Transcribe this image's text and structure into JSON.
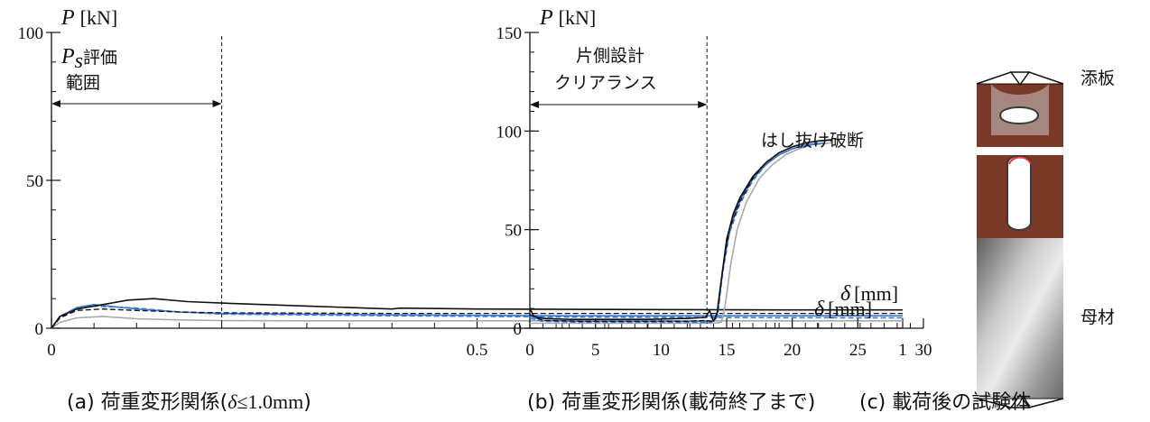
{
  "colors": {
    "black": "#111111",
    "blue_solid": "#3a78d6",
    "blue_dashed": "#3a78d6",
    "gray": "#a9a9a9",
    "black_dashed": "#111111"
  },
  "captions": {
    "a_prefix": "(a) 荷重変形関係(",
    "a_var": "δ",
    "a_cond": "≤1.0mm",
    "a_suffix": ")",
    "b": "(b) 荷重変形関係(載荷終了まで)",
    "c": "(c) 載荷後の試験体"
  },
  "photo": {
    "label_top": "添板",
    "label_bottom": "母材"
  },
  "chart_data": [
    {
      "type": "line",
      "y_var": "P",
      "y_unit": "[kN]",
      "x_var": "δ",
      "x_unit": "[mm]",
      "xlim": [
        0,
        1
      ],
      "ylim": [
        0,
        100
      ],
      "x_ticks": [
        0,
        0.5,
        1
      ],
      "x_tick_labels": [
        "0",
        "0.5",
        "1"
      ],
      "y_ticks": [
        0,
        50,
        100
      ],
      "y_tick_labels": [
        "0",
        "50",
        "100"
      ],
      "annotation": {
        "text_sym": "P",
        "text_sub": "s",
        "text_line1_rest": "評価",
        "text_line2": "範囲",
        "x_start": 0,
        "x_end": 0.2
      },
      "series": [
        {
          "style": "black_solid",
          "x": [
            0,
            0.01,
            0.03,
            0.06,
            0.09,
            0.12,
            0.16,
            0.2,
            0.3,
            0.4,
            0.41,
            0.5,
            0.7,
            0.85,
            1.0
          ],
          "y": [
            0,
            4,
            6.5,
            8,
            9.5,
            10,
            9,
            8.5,
            7.5,
            6.5,
            6.8,
            6.5,
            6.3,
            6.2,
            6.2
          ]
        },
        {
          "style": "black_dashed",
          "x": [
            0,
            0.01,
            0.03,
            0.06,
            0.1,
            0.15,
            0.2,
            0.4,
            0.6,
            0.8,
            1.0
          ],
          "y": [
            0,
            3.5,
            6,
            6.5,
            6,
            5.5,
            5.2,
            5,
            5,
            5,
            5
          ]
        },
        {
          "style": "blue_solid",
          "x": [
            0,
            0.01,
            0.03,
            0.05,
            0.1,
            0.15,
            0.2,
            0.4,
            0.6,
            0.8,
            1.0
          ],
          "y": [
            0,
            4,
            7,
            8,
            6.5,
            5.5,
            5,
            4.5,
            4.2,
            4.2,
            4.2
          ]
        },
        {
          "style": "blue_dashed",
          "x": [
            0,
            0.01,
            0.03,
            0.05,
            0.1,
            0.15,
            0.2,
            0.4,
            0.6,
            0.8,
            1.0
          ],
          "y": [
            0,
            3.5,
            6.5,
            7.5,
            6.8,
            5.5,
            4.8,
            4.2,
            3.8,
            3.6,
            3.5
          ]
        },
        {
          "style": "gray",
          "x": [
            0,
            0.01,
            0.03,
            0.06,
            0.1,
            0.15,
            0.2,
            0.3,
            0.5,
            0.8,
            1.0
          ],
          "y": [
            0,
            2,
            3.5,
            4,
            3.2,
            2.8,
            2.6,
            2.5,
            2.5,
            2.5,
            2.5
          ]
        }
      ]
    },
    {
      "type": "line",
      "y_var": "P",
      "y_unit": "[kN]",
      "x_var": "δ",
      "x_unit": "[mm]",
      "xlim": [
        0,
        30
      ],
      "ylim": [
        0,
        150
      ],
      "x_ticks": [
        0,
        5,
        10,
        15,
        20,
        25,
        30
      ],
      "x_tick_labels": [
        "0",
        "5",
        "10",
        "15",
        "20",
        "25",
        "30"
      ],
      "y_ticks": [
        0,
        50,
        100,
        150
      ],
      "y_tick_labels": [
        "0",
        "50",
        "100",
        "150"
      ],
      "annotation": {
        "text_line1": "片側設計",
        "text_line2": "クリアランス",
        "x_start": 0,
        "x_end": 13.5
      },
      "failure_label": "はし抜け破断",
      "series": [
        {
          "style": "black_solid",
          "x": [
            0,
            0.3,
            1,
            3,
            6,
            9,
            12,
            13.4,
            13.7,
            14.0,
            14.3,
            14.6,
            15.0,
            15.5,
            16.0,
            17.0,
            18.0,
            19.0,
            20.0,
            21.0,
            22.0,
            23.0
          ],
          "y": [
            10,
            6,
            5,
            4.5,
            4.5,
            4.5,
            5,
            5.5,
            9,
            3.5,
            8,
            25,
            45,
            58,
            66,
            77,
            84,
            89,
            92,
            94,
            95,
            95.5
          ]
        },
        {
          "style": "black_dashed",
          "x": [
            0,
            1,
            4,
            8,
            12,
            13.5,
            14.0,
            14.3,
            14.7,
            15.2,
            16.0,
            17.0,
            18.0,
            19.0,
            20.0,
            21.0,
            22.0,
            23.5
          ],
          "y": [
            7,
            4,
            3.5,
            3.5,
            3.5,
            4,
            3,
            8,
            30,
            50,
            64,
            76,
            84,
            89,
            92,
            94,
            95,
            96
          ]
        },
        {
          "style": "blue_solid",
          "x": [
            0,
            1,
            4,
            8,
            12,
            13.8,
            14.2,
            14.5,
            15.0,
            15.5,
            16.0,
            17.0,
            18.0,
            19.0,
            20.0,
            21.0,
            22.5
          ],
          "y": [
            6,
            4,
            3.5,
            3.5,
            3.5,
            3.5,
            5,
            20,
            42,
            56,
            65,
            76,
            83,
            88,
            91,
            93,
            94
          ]
        },
        {
          "style": "blue_dashed",
          "x": [
            0,
            1,
            4,
            8,
            12,
            13.8,
            14.3,
            14.7,
            15.2,
            16.0,
            17.0,
            18.0,
            19.0,
            20.0,
            21.5,
            22.5
          ],
          "y": [
            5,
            3.5,
            3,
            3,
            3,
            3,
            6,
            28,
            48,
            63,
            75,
            83,
            88,
            91,
            93,
            94
          ]
        },
        {
          "style": "gray",
          "x": [
            0,
            2,
            6,
            10,
            14,
            14.6,
            14.9,
            15.3,
            15.8,
            16.5,
            17.5,
            18.5,
            19.5,
            20.5,
            21.5,
            23.0
          ],
          "y": [
            2.5,
            2.5,
            2.5,
            2.5,
            2.5,
            3,
            12,
            32,
            50,
            64,
            76,
            83,
            88,
            91,
            93,
            94
          ]
        }
      ]
    }
  ]
}
